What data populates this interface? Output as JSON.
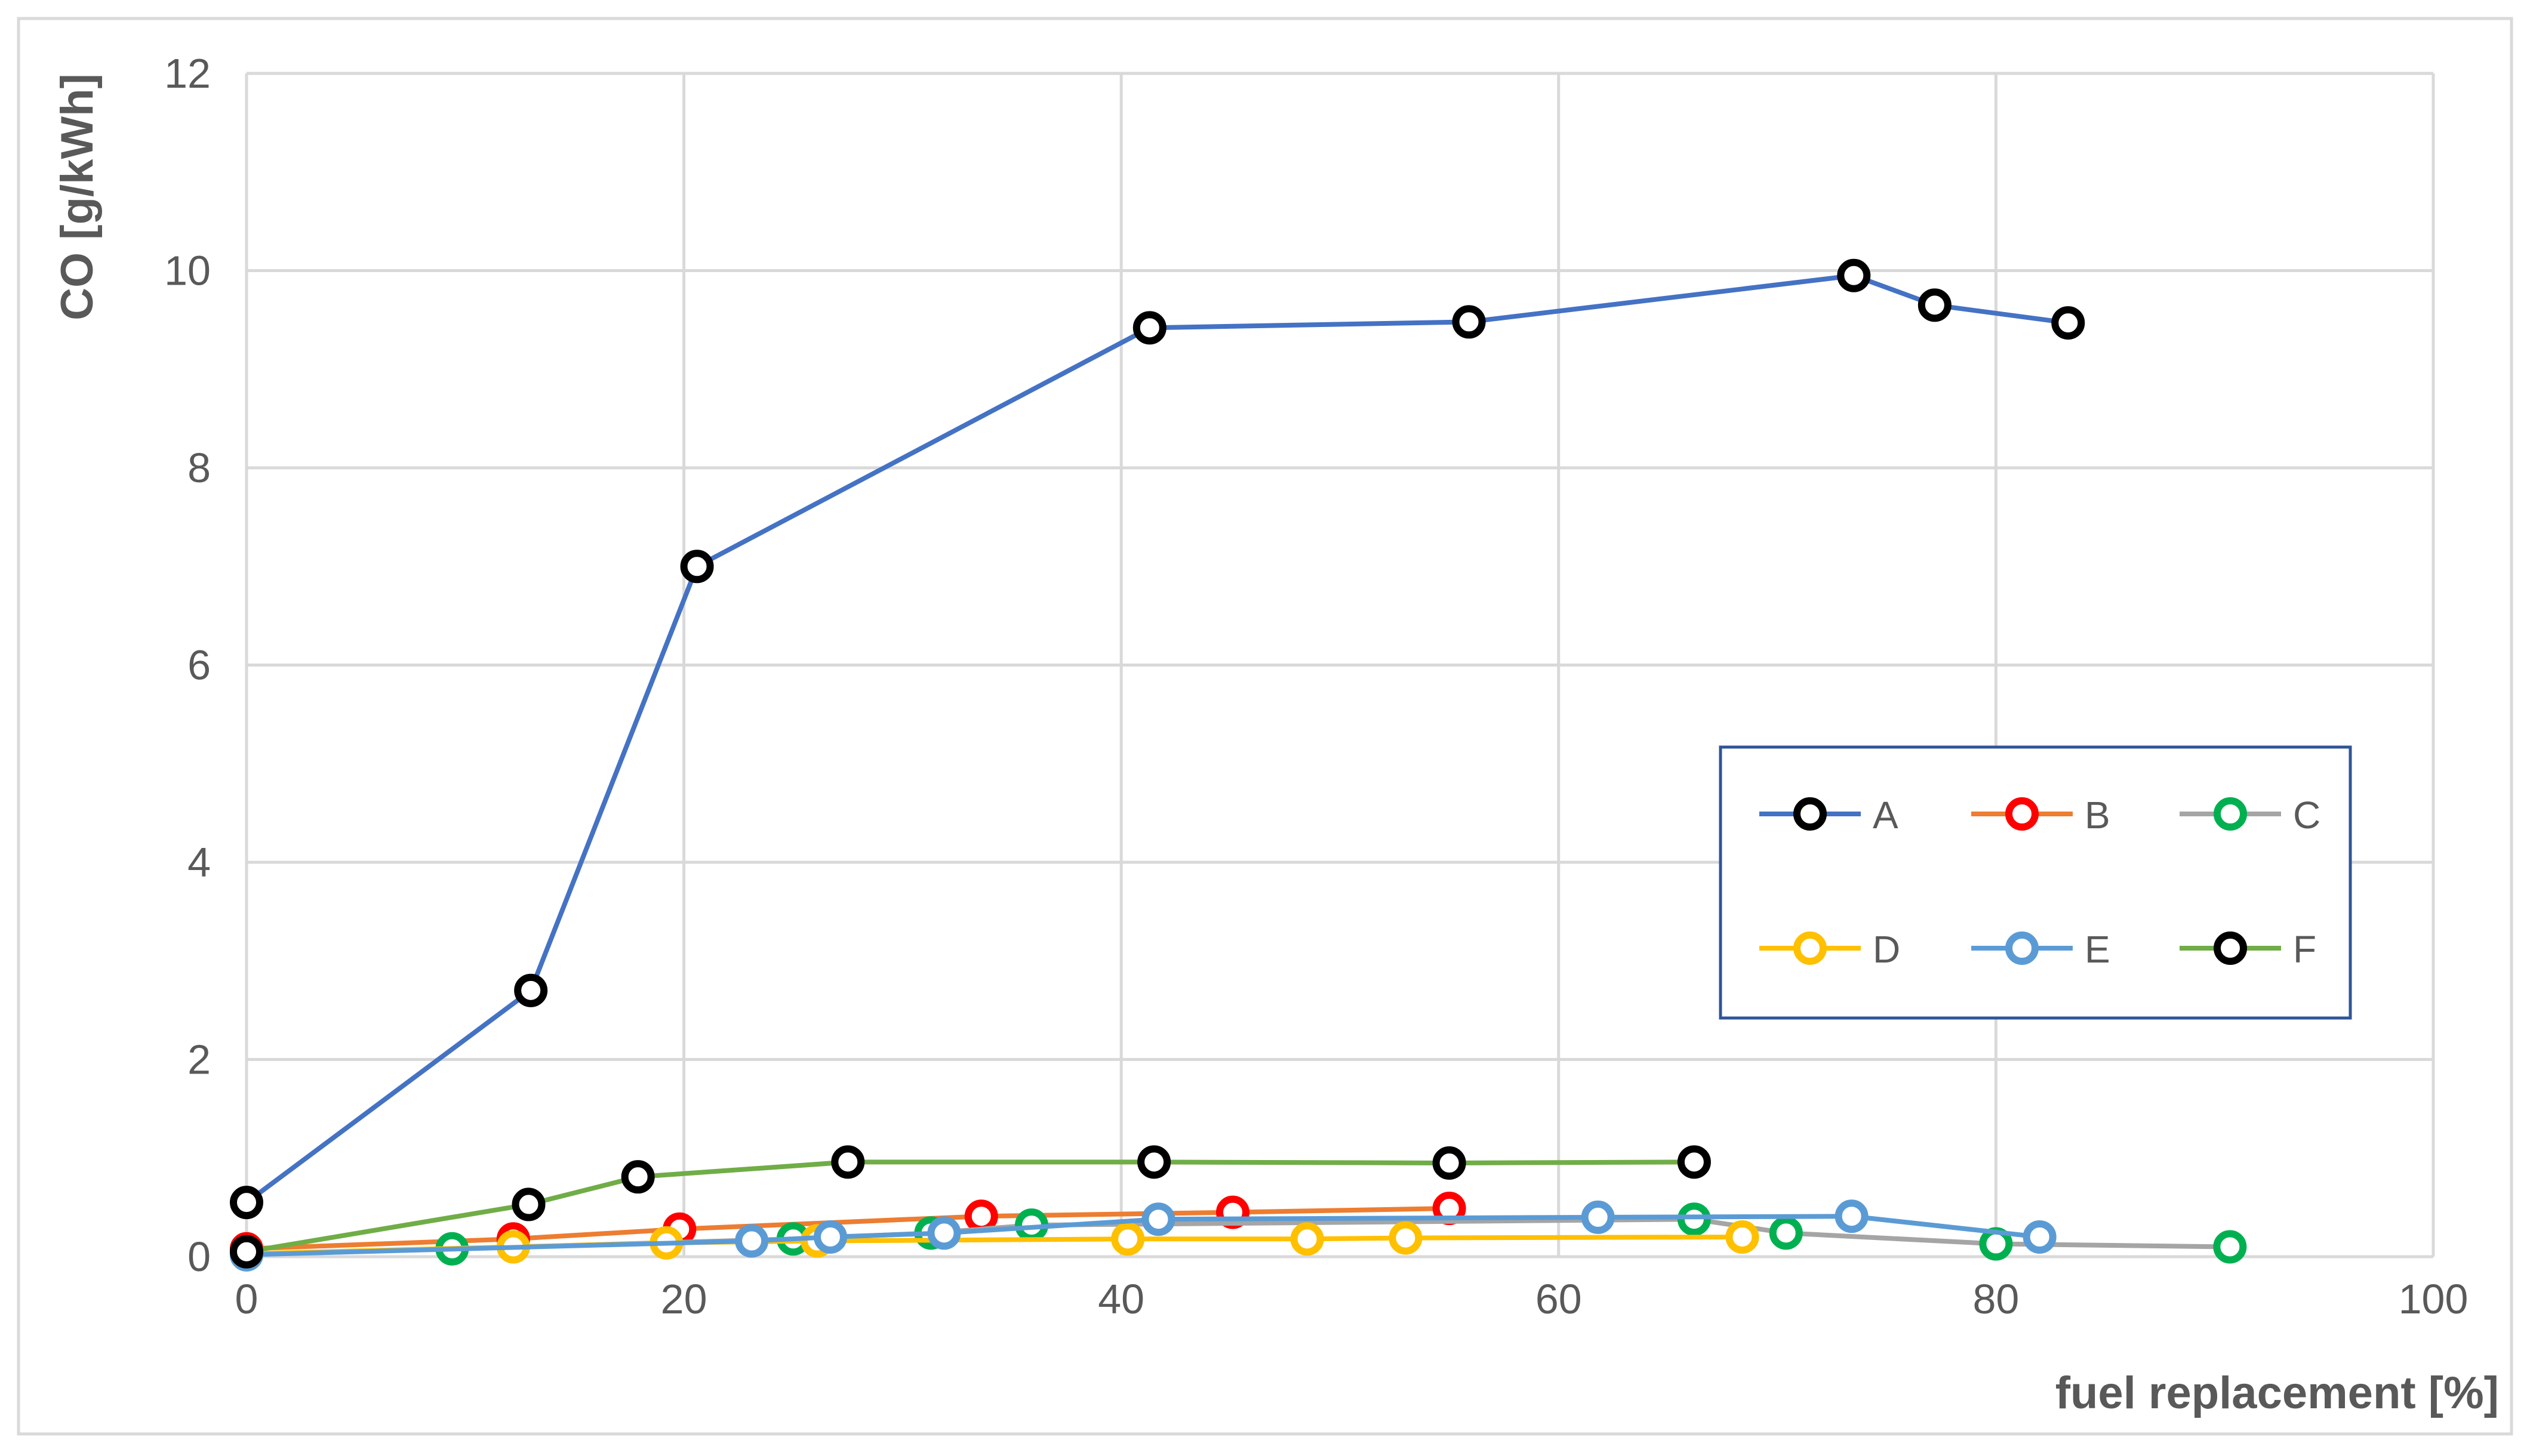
{
  "chart_data": {
    "type": "line",
    "title": "",
    "xlabel": "fuel replacement [%]",
    "ylabel": "CO [g/kWh]",
    "xlim": [
      0,
      100
    ],
    "ylim": [
      0,
      12
    ],
    "x_ticks": [
      0,
      20,
      40,
      60,
      80,
      100
    ],
    "y_ticks": [
      0,
      2,
      4,
      6,
      8,
      10,
      12
    ],
    "grid": true,
    "legend_position": "center-right",
    "series": [
      {
        "name": "A",
        "line_color": "#4472C4",
        "marker_color": "#000000",
        "points": [
          {
            "x": 0,
            "y": 0.55
          },
          {
            "x": 13,
            "y": 2.7
          },
          {
            "x": 20.6,
            "y": 7.0
          },
          {
            "x": 41.3,
            "y": 9.42
          },
          {
            "x": 55.9,
            "y": 9.48
          },
          {
            "x": 73.5,
            "y": 9.95
          },
          {
            "x": 77.2,
            "y": 9.65
          },
          {
            "x": 83.3,
            "y": 9.47
          }
        ]
      },
      {
        "name": "B",
        "line_color": "#ED7D31",
        "marker_color": "#FF0000",
        "points": [
          {
            "x": 0,
            "y": 0.08
          },
          {
            "x": 12.2,
            "y": 0.18
          },
          {
            "x": 19.8,
            "y": 0.28
          },
          {
            "x": 33.6,
            "y": 0.41
          },
          {
            "x": 45.1,
            "y": 0.45
          },
          {
            "x": 55,
            "y": 0.49
          }
        ]
      },
      {
        "name": "C",
        "line_color": "#A5A5A5",
        "marker_color": "#00B050",
        "points": [
          {
            "x": 0,
            "y": 0.02
          },
          {
            "x": 9.4,
            "y": 0.08
          },
          {
            "x": 25,
            "y": 0.18
          },
          {
            "x": 31.3,
            "y": 0.24
          },
          {
            "x": 35.9,
            "y": 0.32
          },
          {
            "x": 66.2,
            "y": 0.38
          },
          {
            "x": 70.4,
            "y": 0.24
          },
          {
            "x": 80,
            "y": 0.13
          },
          {
            "x": 90.7,
            "y": 0.1
          }
        ]
      },
      {
        "name": "D",
        "line_color": "#FFC000",
        "marker_color": "#FFC000",
        "points": [
          {
            "x": 0,
            "y": 0.03
          },
          {
            "x": 12.2,
            "y": 0.1
          },
          {
            "x": 19.2,
            "y": 0.14
          },
          {
            "x": 26.1,
            "y": 0.16
          },
          {
            "x": 40.3,
            "y": 0.18
          },
          {
            "x": 48.5,
            "y": 0.18
          },
          {
            "x": 53,
            "y": 0.19
          },
          {
            "x": 68.4,
            "y": 0.2
          }
        ]
      },
      {
        "name": "E",
        "line_color": "#5B9BD5",
        "marker_color": "#5B9BD5",
        "points": [
          {
            "x": 0,
            "y": 0.02
          },
          {
            "x": 23.1,
            "y": 0.16
          },
          {
            "x": 26.7,
            "y": 0.2
          },
          {
            "x": 31.9,
            "y": 0.24
          },
          {
            "x": 41.7,
            "y": 0.38
          },
          {
            "x": 61.8,
            "y": 0.4
          },
          {
            "x": 73.4,
            "y": 0.41
          },
          {
            "x": 82,
            "y": 0.2
          }
        ]
      },
      {
        "name": "F",
        "line_color": "#70AD47",
        "marker_color": "#000000",
        "points": [
          {
            "x": 0,
            "y": 0.05
          },
          {
            "x": 12.9,
            "y": 0.53
          },
          {
            "x": 17.9,
            "y": 0.81
          },
          {
            "x": 27.5,
            "y": 0.96
          },
          {
            "x": 41.5,
            "y": 0.96
          },
          {
            "x": 55,
            "y": 0.95
          },
          {
            "x": 66.2,
            "y": 0.96
          }
        ]
      }
    ]
  }
}
